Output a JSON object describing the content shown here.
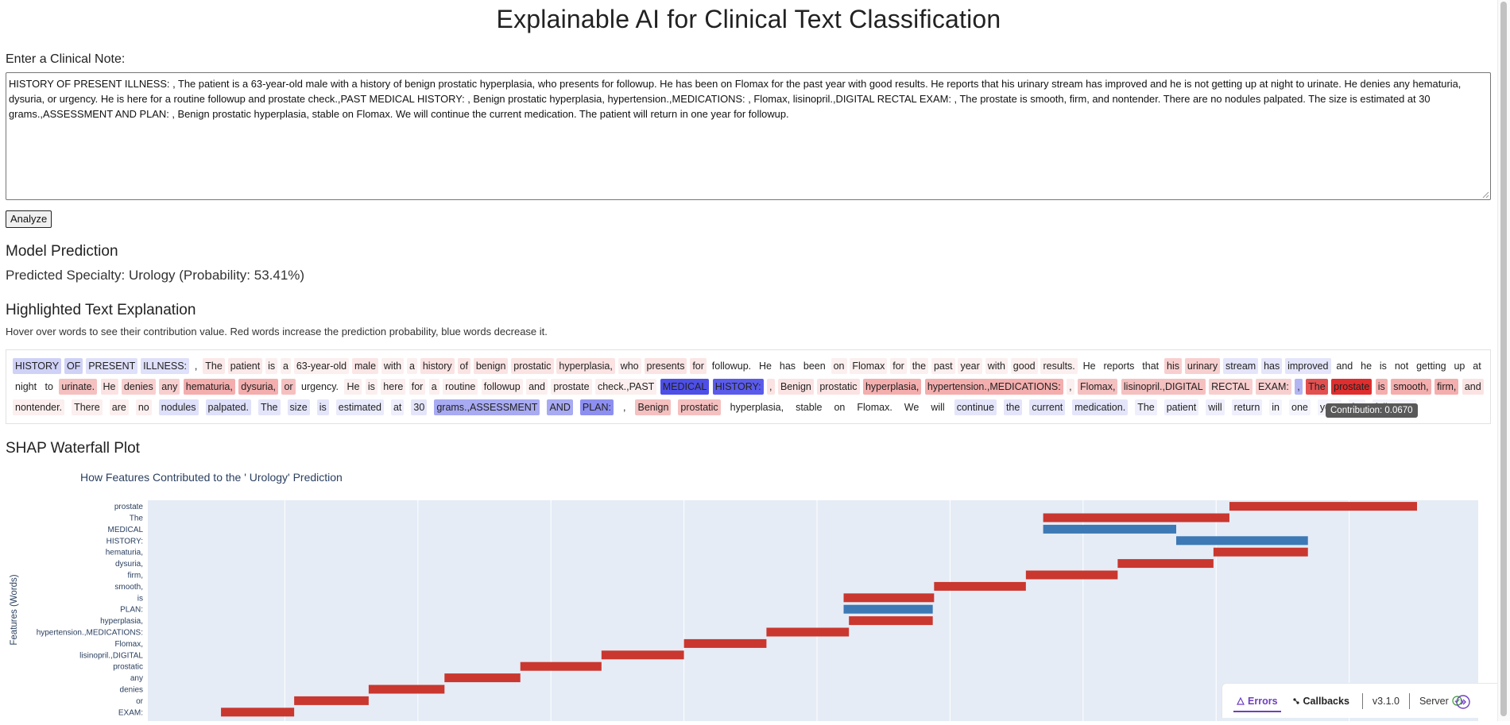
{
  "title": "Explainable AI for Clinical Text Classification",
  "note": {
    "label": "Enter a Clinical Note:",
    "value": "HISTORY OF PRESENT ILLNESS: , The patient is a 63-year-old male with a history of benign prostatic hyperplasia, who presents for followup. He has been on Flomax for the past year with good results. He reports that his urinary stream has improved and he is not getting up at night to urinate. He denies any hematuria, dysuria, or urgency. He is here for a routine followup and prostate check.,PAST MEDICAL HISTORY: , Benign prostatic hyperplasia, hypertension.,MEDICATIONS: , Flomax, lisinopril.,DIGITAL RECTAL EXAM: , The prostate is smooth, firm, and nontender. There are no nodules palpated. The size is estimated at 30 grams.,ASSESSMENT AND PLAN: , Benign prostatic hyperplasia, stable on Flomax. We will continue the current medication. The patient will return in one year for followup."
  },
  "analyze_label": "Analyze",
  "prediction": {
    "heading": "Model Prediction",
    "text": "Predicted Specialty: Urology (Probability: 53.41%)"
  },
  "explanation": {
    "heading": "Highlighted Text Explanation",
    "description": "Hover over words to see their contribution value. Red words increase the prediction probability, blue words decrease it.",
    "tooltip": "Contribution: 0.0670",
    "lines": [
      [
        {
          "t": "HISTORY",
          "c": "#cfd1f7"
        },
        {
          "t": "OF",
          "c": "#cfd1f7"
        },
        {
          "t": "PRESENT",
          "c": "#dfe0f9"
        },
        {
          "t": "ILLNESS:",
          "c": "#dfe0f9"
        },
        {
          "t": ",",
          "c": ""
        },
        {
          "t": "The",
          "c": "#fbe8e8"
        },
        {
          "t": "patient",
          "c": "#fbe8e8"
        },
        {
          "t": "is",
          "c": "#fcefef"
        },
        {
          "t": "a",
          "c": "#fcefef"
        },
        {
          "t": "63-year-old",
          "c": "#fcefef"
        },
        {
          "t": "male",
          "c": "#fbe6e6"
        },
        {
          "t": "with",
          "c": "#fcefef"
        },
        {
          "t": "a",
          "c": "#fcefef"
        },
        {
          "t": "history",
          "c": "#fbe3e3"
        },
        {
          "t": "of",
          "c": "#fbe3e3"
        },
        {
          "t": "benign",
          "c": "#fbe3e3"
        },
        {
          "t": "prostatic",
          "c": "#fbe3e3"
        },
        {
          "t": "hyperplasia,",
          "c": "#fbe3e3"
        },
        {
          "t": "who",
          "c": "#fcefef"
        },
        {
          "t": "presents",
          "c": "#fbe3e3"
        },
        {
          "t": "for",
          "c": "#fbe6e6"
        },
        {
          "t": "followup.",
          "c": ""
        },
        {
          "t": "He",
          "c": ""
        },
        {
          "t": "has",
          "c": ""
        },
        {
          "t": "been",
          "c": ""
        },
        {
          "t": "on",
          "c": "#fcefef"
        },
        {
          "t": "Flomax",
          "c": "#fcefef"
        },
        {
          "t": "for",
          "c": "#fcefef"
        },
        {
          "t": "the",
          "c": "#fcefef"
        },
        {
          "t": "past",
          "c": "#fcefef"
        },
        {
          "t": "year",
          "c": "#fcefef"
        },
        {
          "t": "with",
          "c": "#fcefef"
        },
        {
          "t": "good",
          "c": "#fcefef"
        },
        {
          "t": "results.",
          "c": "#fcefef"
        },
        {
          "t": "He",
          "c": ""
        },
        {
          "t": "reports",
          "c": ""
        },
        {
          "t": "that",
          "c": ""
        },
        {
          "t": "his",
          "c": "#f8cfcf"
        },
        {
          "t": "urinary",
          "c": "#f8cfcf"
        },
        {
          "t": "stream",
          "c": "#e4e5fa"
        },
        {
          "t": "has",
          "c": "#e4e5fa"
        },
        {
          "t": "improved",
          "c": "#e4e5fa"
        },
        {
          "t": "and",
          "c": ""
        },
        {
          "t": "he",
          "c": ""
        },
        {
          "t": "is",
          "c": ""
        },
        {
          "t": "not",
          "c": ""
        },
        {
          "t": "getting",
          "c": ""
        },
        {
          "t": "up",
          "c": ""
        },
        {
          "t": "at",
          "c": ""
        }
      ],
      [
        {
          "t": "night",
          "c": ""
        },
        {
          "t": "to",
          "c": ""
        },
        {
          "t": "urinate.",
          "c": "#f5c0c0"
        },
        {
          "t": "He",
          "c": "#fbe3e3"
        },
        {
          "t": "denies",
          "c": "#f8cfcf"
        },
        {
          "t": "any",
          "c": "#f8cfcf"
        },
        {
          "t": "hematuria,",
          "c": "#f4aeae"
        },
        {
          "t": "dysuria,",
          "c": "#f4aeae"
        },
        {
          "t": "or",
          "c": "#f5c0c0"
        },
        {
          "t": "urgency.",
          "c": ""
        },
        {
          "t": "He",
          "c": "#fcefef"
        },
        {
          "t": "is",
          "c": "#fcefef"
        },
        {
          "t": "here",
          "c": "#fcefef"
        },
        {
          "t": "for",
          "c": "#fcefef"
        },
        {
          "t": "a",
          "c": "#fcefef"
        },
        {
          "t": "routine",
          "c": "#fcefef"
        },
        {
          "t": "followup",
          "c": "#fcefef"
        },
        {
          "t": "and",
          "c": "#fcefef"
        },
        {
          "t": "prostate",
          "c": "#fcefef"
        },
        {
          "t": "check.,PAST",
          "c": "#fcefef"
        },
        {
          "t": "MEDICAL",
          "c": "#4e4fe6"
        },
        {
          "t": "HISTORY:",
          "c": "#5a5beb"
        },
        {
          "t": ",",
          "c": "#fbe3e3"
        },
        {
          "t": "Benign",
          "c": "#fbe3e3"
        },
        {
          "t": "prostatic",
          "c": "#fbe3e3"
        },
        {
          "t": "hyperplasia,",
          "c": "#f4aeae"
        },
        {
          "t": "hypertension.,MEDICATIONS:",
          "c": "#f4aeae"
        },
        {
          "t": ",",
          "c": "#fcefef"
        },
        {
          "t": "Flomax,",
          "c": "#f5c0c0"
        },
        {
          "t": "lisinopril.,DIGITAL",
          "c": "#f5c0c0"
        },
        {
          "t": "RECTAL",
          "c": "#f8cfcf"
        },
        {
          "t": "EXAM:",
          "c": "#f8cfcf"
        },
        {
          "t": ",",
          "c": "#b3b5f3"
        },
        {
          "t": "The",
          "c": "#e35050"
        },
        {
          "t": "prostate",
          "c": "#e02d2d"
        },
        {
          "t": "is",
          "c": "#f4aeae"
        },
        {
          "t": "smooth,",
          "c": "#f4aeae"
        },
        {
          "t": "firm,",
          "c": "#f4aeae"
        },
        {
          "t": "and",
          "c": "#fbe3e3"
        }
      ],
      [
        {
          "t": "nontender.",
          "c": "#fcefef"
        },
        {
          "t": "There",
          "c": "#fcefef"
        },
        {
          "t": "are",
          "c": "#fcefef"
        },
        {
          "t": "no",
          "c": "#fcefef"
        },
        {
          "t": "nodules",
          "c": "#dfe0f9"
        },
        {
          "t": "palpated.",
          "c": "#dfe0f9"
        },
        {
          "t": "The",
          "c": "#e4e5fa"
        },
        {
          "t": "size",
          "c": "#e4e5fa"
        },
        {
          "t": "is",
          "c": "#e4e5fa"
        },
        {
          "t": "estimated",
          "c": "#e9eafb"
        },
        {
          "t": "at",
          "c": "#eeeefc"
        },
        {
          "t": "30",
          "c": "#e4e5fa"
        },
        {
          "t": "grams.,ASSESSMENT",
          "c": "#a8aaf2"
        },
        {
          "t": "AND",
          "c": "#a8aaf2"
        },
        {
          "t": "PLAN:",
          "c": "#8d8ff0"
        },
        {
          "t": ",",
          "c": ""
        },
        {
          "t": "Benign",
          "c": "#f5c0c0"
        },
        {
          "t": "prostatic",
          "c": "#f5c0c0"
        },
        {
          "t": "hyperplasia,",
          "c": ""
        },
        {
          "t": "stable",
          "c": ""
        },
        {
          "t": "on",
          "c": ""
        },
        {
          "t": "Flomax.",
          "c": ""
        },
        {
          "t": "We",
          "c": ""
        },
        {
          "t": "will",
          "c": ""
        },
        {
          "t": "continue",
          "c": "#e4e5fa"
        },
        {
          "t": "the",
          "c": "#e4e5fa"
        },
        {
          "t": "current",
          "c": "#e4e5fa"
        },
        {
          "t": "medication.",
          "c": "#e4e5fa"
        },
        {
          "t": "The",
          "c": "#eeeefc"
        },
        {
          "t": "patient",
          "c": "#eeeefc"
        },
        {
          "t": "will",
          "c": "#eeeefc"
        },
        {
          "t": "return",
          "c": "#eeeefc"
        },
        {
          "t": "in",
          "c": "#f4f4fd"
        },
        {
          "t": "one",
          "c": "#f4f4fd"
        },
        {
          "t": "year",
          "c": "#f4f4fd"
        },
        {
          "t": "for",
          "c": "#f4f4fd"
        },
        {
          "t": "followup.",
          "c": "#f4f4fd"
        }
      ]
    ]
  },
  "waterfall": {
    "heading": "SHAP Waterfall Plot",
    "chart_data": {
      "type": "bar",
      "subtype": "waterfall",
      "title": "How Features Contributed to the ' Urology' Prediction",
      "ylabel": "Features (Words)",
      "increase_color": "#c9372f",
      "decrease_color": "#3d79b5",
      "plot_bg": "#e5ecf6",
      "grid": true,
      "x_range": [
        0,
        1
      ],
      "features": [
        "prostate",
        "The",
        "MEDICAL",
        "HISTORY:",
        "hematuria,",
        "dysuria,",
        "firm,",
        "smooth,",
        "is",
        "PLAN:",
        "hyperplasia,",
        "hypertension.,MEDICATIONS:",
        "Flomax,",
        "lisinopril.,DIGITAL",
        "prostatic",
        "any",
        "denies",
        "or",
        "EXAM:"
      ],
      "bars": [
        {
          "start": 0.813,
          "end": 0.954
        },
        {
          "start": 0.673,
          "end": 0.813
        },
        {
          "start": 0.673,
          "end": 0.773
        },
        {
          "start": 0.773,
          "end": 0.872
        },
        {
          "start": 0.801,
          "end": 0.872
        },
        {
          "start": 0.729,
          "end": 0.801
        },
        {
          "start": 0.66,
          "end": 0.729
        },
        {
          "start": 0.591,
          "end": 0.66
        },
        {
          "start": 0.523,
          "end": 0.591
        },
        {
          "start": 0.523,
          "end": 0.59
        },
        {
          "start": 0.527,
          "end": 0.59
        },
        {
          "start": 0.465,
          "end": 0.527
        },
        {
          "start": 0.403,
          "end": 0.465
        },
        {
          "start": 0.341,
          "end": 0.403
        },
        {
          "start": 0.28,
          "end": 0.341
        },
        {
          "start": 0.223,
          "end": 0.28
        },
        {
          "start": 0.166,
          "end": 0.223
        },
        {
          "start": 0.11,
          "end": 0.166
        },
        {
          "start": 0.055,
          "end": 0.11
        }
      ]
    }
  },
  "devtools": {
    "errors_label": "Errors",
    "callbacks_label": "Callbacks",
    "version": "v3.1.0",
    "server_label": "Server"
  }
}
